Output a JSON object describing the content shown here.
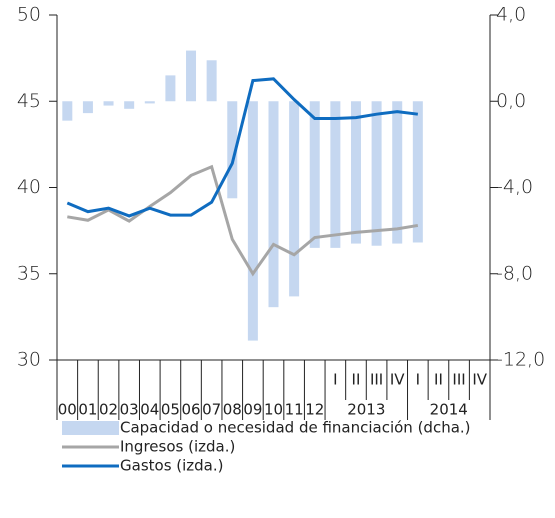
{
  "chart_data": {
    "type": "combo",
    "categories": [
      "00",
      "01",
      "02",
      "03",
      "04",
      "05",
      "06",
      "07",
      "08",
      "09",
      "10",
      "11",
      "12",
      "I",
      "II",
      "III",
      "IV",
      "I",
      "II",
      "III",
      "IV"
    ],
    "x_groups": [
      "2013",
      "2014"
    ],
    "ylim": [
      30,
      50
    ],
    "yticks": [
      30,
      35,
      40,
      45,
      50
    ],
    "y2lim": [
      -12,
      4
    ],
    "y2ticks": [
      {
        "value": -12,
        "label": "-12,0"
      },
      {
        "value": -8,
        "label": "-8,0"
      },
      {
        "value": -4,
        "label": "-4,0"
      },
      {
        "value": 0,
        "label": "0,0"
      },
      {
        "value": 4,
        "label": "4,0"
      }
    ],
    "series": [
      {
        "name": "Capacidad o necesidad de financiación  (dcha.)",
        "kind": "bar",
        "axis": "y2",
        "color": "#c5d7f0",
        "values": [
          -0.9,
          -0.55,
          -0.2,
          -0.35,
          -0.1,
          1.2,
          2.35,
          1.9,
          -4.5,
          -11.1,
          -9.55,
          -9.05,
          -6.8,
          -6.8,
          -6.6,
          -6.7,
          -6.6,
          -6.55,
          null,
          null,
          null
        ]
      },
      {
        "name": "Ingresos (izda.)",
        "kind": "line",
        "color": "#a6a6a6",
        "values": [
          38.3,
          38.1,
          38.7,
          38.05,
          38.9,
          39.7,
          40.7,
          41.2,
          37.0,
          35.0,
          36.7,
          36.1,
          37.1,
          37.25,
          37.4,
          37.5,
          37.6,
          37.8,
          null,
          null,
          null
        ]
      },
      {
        "name": "Gastos (izda.)",
        "kind": "line",
        "color": "#0f6cc0",
        "values": [
          39.1,
          38.6,
          38.8,
          38.35,
          38.8,
          38.4,
          38.4,
          39.15,
          41.4,
          46.2,
          46.3,
          45.1,
          44.0,
          44.0,
          44.05,
          44.25,
          44.4,
          44.25,
          null,
          null,
          null
        ]
      }
    ]
  }
}
